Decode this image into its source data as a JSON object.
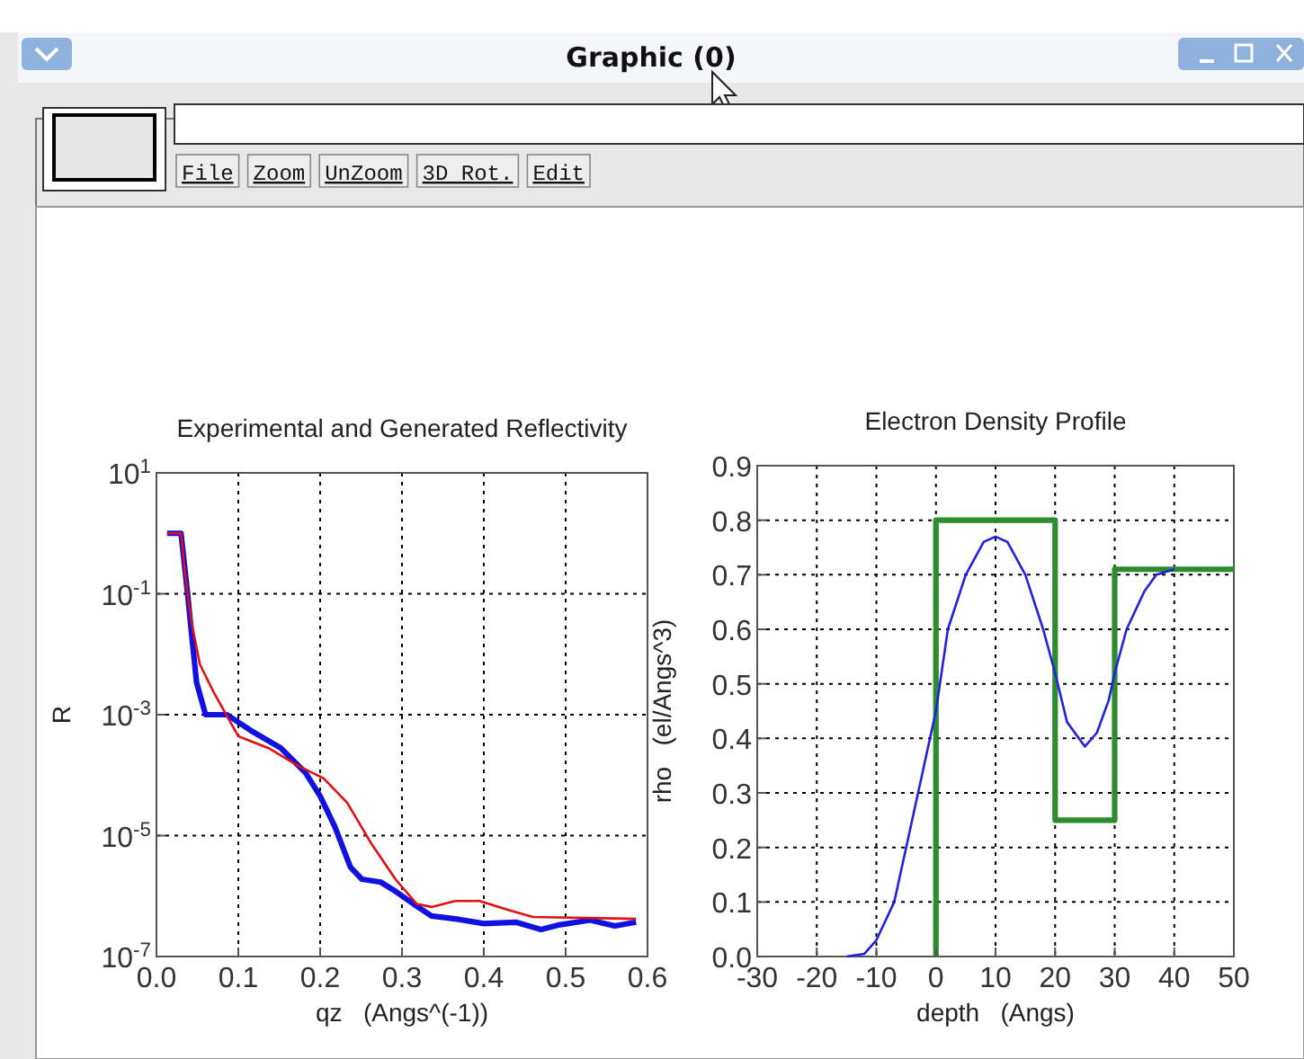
{
  "chart_data": [
    {
      "type": "other",
      "title": "Graphic (0)",
      "annotations": [
        "File",
        "Zoom",
        "UnZoom",
        "3D Rot.",
        "Edit"
      ]
    },
    {
      "type": "line",
      "title": "Experimental and Generated Reflectivity",
      "xlabel": "qz   (Angs^(-1))",
      "ylabel": "R",
      "log": "y",
      "grid": true,
      "xlim": [
        0,
        0.6
      ],
      "xticks": [
        {
          "value": 0,
          "label": "0.0"
        },
        0.1,
        0.2,
        0.3,
        0.4,
        0.5,
        0.6
      ],
      "ylim": [
        1e-07,
        10
      ],
      "yticks": [
        {
          "value": 1e-07,
          "label": "10$^{-7}$"
        },
        {
          "value": 1e-05,
          "label": "10$^{-5}$"
        },
        {
          "value": 0.001,
          "label": "10$^{-3}$"
        },
        {
          "value": 0.1,
          "label": "10$^{-1}$"
        },
        {
          "value": 10,
          "label": "10$^{1}$"
        }
      ],
      "series": [
        {
          "color": "#1010e0",
          "x": [
            0.013,
            0.03,
            0.038,
            0.043,
            0.049,
            0.06,
            0.086,
            0.115,
            0.152,
            0.182,
            0.2,
            0.218,
            0.237,
            0.251,
            0.274,
            0.292,
            0.314,
            0.336,
            0.365,
            0.4,
            0.439,
            0.47,
            0.49,
            0.53,
            0.56,
            0.586
          ],
          "values": [
            1.0,
            1.0,
            0.1,
            0.021,
            0.0034,
            0.001,
            0.001,
            0.00055,
            0.00028,
            0.00011,
            4.5e-05,
            1.4e-05,
            3e-06,
            1.9e-06,
            1.7e-06,
            1.2e-06,
            7.4e-07,
            4.7e-07,
            4.2e-07,
            3.5e-07,
            3.7e-07,
            2.8e-07,
            3.3e-07,
            4e-07,
            3.2e-07,
            3.7e-07
          ]
        },
        {
          "color": "#e01010",
          "x": [
            0.013,
            0.03,
            0.035,
            0.038,
            0.043,
            0.053,
            0.071,
            0.1,
            0.137,
            0.174,
            0.204,
            0.233,
            0.263,
            0.292,
            0.318,
            0.336,
            0.365,
            0.395,
            0.43,
            0.46,
            0.586
          ],
          "values": [
            1.0,
            1.0,
            0.21,
            0.1,
            0.033,
            0.0068,
            0.0022,
            0.00044,
            0.00028,
            0.00014,
            8.9e-05,
            3.5e-05,
            7.2e-06,
            1.9e-06,
            7.4e-07,
            6.6e-07,
            8.3e-07,
            8.3e-07,
            5.9e-07,
            4.5e-07,
            4.2e-07
          ]
        }
      ]
    },
    {
      "type": "line",
      "title": "Electron Density Profile",
      "xlabel": "depth   (Angs)",
      "ylabel": "rho   (el/Angs^3)",
      "grid": true,
      "xlim": [
        -30,
        50
      ],
      "xticks": [
        -30,
        -20,
        -10,
        0,
        10,
        20,
        30,
        40,
        50
      ],
      "ylim": [
        0,
        0.9
      ],
      "yticks": [
        {
          "value": 0,
          "label": "0.0"
        },
        0.1,
        0.2,
        0.3,
        0.4,
        0.5,
        0.6,
        0.7,
        0.8,
        0.9
      ],
      "series": [
        {
          "color": "#2e8b2e",
          "x": [
            0,
            0,
            20,
            20,
            30,
            30,
            50
          ],
          "values": [
            0,
            0.8,
            0.8,
            0.25,
            0.25,
            0.71,
            0.71
          ]
        },
        {
          "color": "#2020e0",
          "x": [
            -15,
            -12,
            -10,
            -7,
            -5,
            -3,
            -1,
            0,
            2,
            5,
            8,
            10,
            12,
            15,
            18,
            20,
            22,
            25,
            27,
            29,
            30,
            32,
            35,
            37,
            40
          ],
          "values": [
            0,
            0.005,
            0.03,
            0.1,
            0.2,
            0.3,
            0.4,
            0.45,
            0.6,
            0.7,
            0.76,
            0.77,
            0.76,
            0.7,
            0.6,
            0.52,
            0.43,
            0.385,
            0.41,
            0.47,
            0.52,
            0.6,
            0.67,
            0.7,
            0.71
          ]
        }
      ]
    }
  ]
}
